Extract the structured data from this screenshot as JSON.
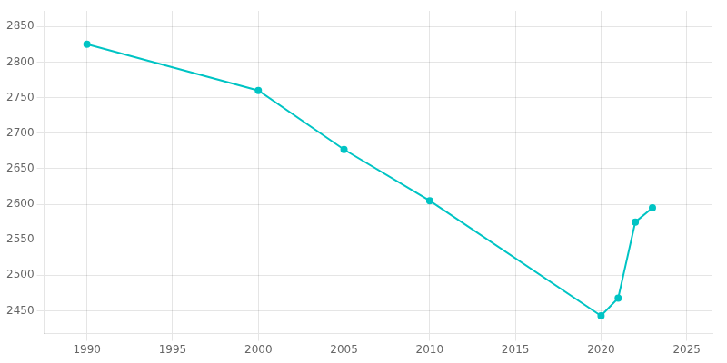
{
  "chart_data": {
    "type": "line",
    "x": [
      1990,
      2000,
      2005,
      2010,
      2020,
      2021,
      2022,
      2023
    ],
    "values": [
      2825,
      2760,
      2677,
      2605,
      2443,
      2468,
      2575,
      2595
    ],
    "color": "#00C4C4",
    "marker": "circle",
    "xlim": [
      1987.5,
      2026.5
    ],
    "ylim": [
      2418,
      2872
    ],
    "xticks": [
      1990,
      1995,
      2000,
      2005,
      2010,
      2015,
      2020,
      2025
    ],
    "yticks": [
      2450,
      2500,
      2550,
      2600,
      2650,
      2700,
      2750,
      2800,
      2850
    ],
    "grid": true
  }
}
